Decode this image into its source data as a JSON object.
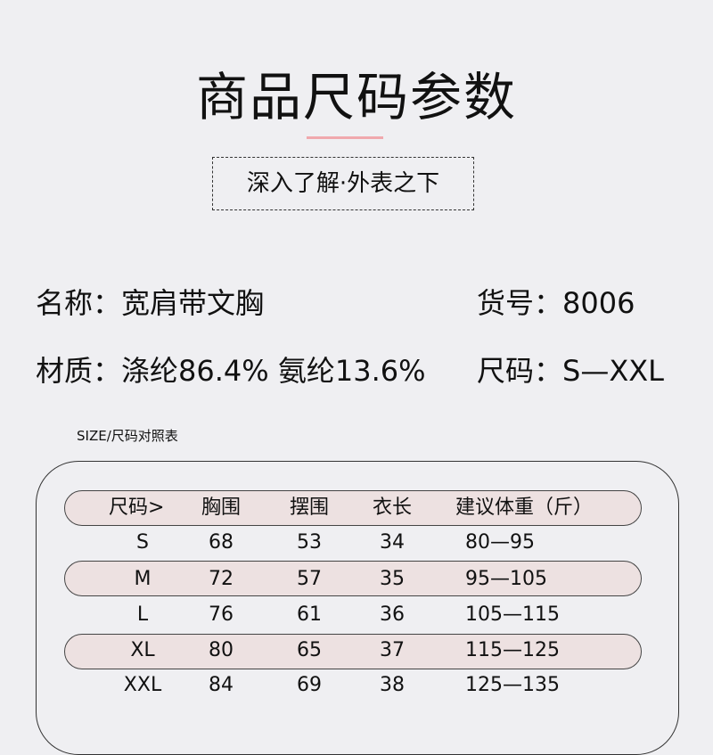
{
  "header": {
    "title": "商品尺码参数",
    "subtitle": "深入了解·外表之下",
    "accent_color": "#f0a8ad"
  },
  "info": {
    "name_label": "名称：",
    "name_value": "宽肩带文胸",
    "sku_label": "货号：",
    "sku_value": "8006",
    "material_label": "材质：",
    "material_value": "涤纶86.4% 氨纶13.6%",
    "size_label": "尺码：",
    "size_value": "S—XXL"
  },
  "table": {
    "caption": "SIZE/尺码对照表",
    "headers": [
      "尺码>",
      "胸围",
      "摆围",
      "衣长",
      "建议体重（斤）"
    ],
    "rows": [
      [
        "S",
        "68",
        "53",
        "34",
        "80—95"
      ],
      [
        "M",
        "72",
        "57",
        "35",
        "95—105"
      ],
      [
        "L",
        "76",
        "61",
        "36",
        "105—115"
      ],
      [
        "XL",
        "80",
        "65",
        "37",
        "115—125"
      ],
      [
        "XXL",
        "84",
        "69",
        "38",
        "125—135"
      ]
    ],
    "highlight_color": "#ede1e1"
  }
}
